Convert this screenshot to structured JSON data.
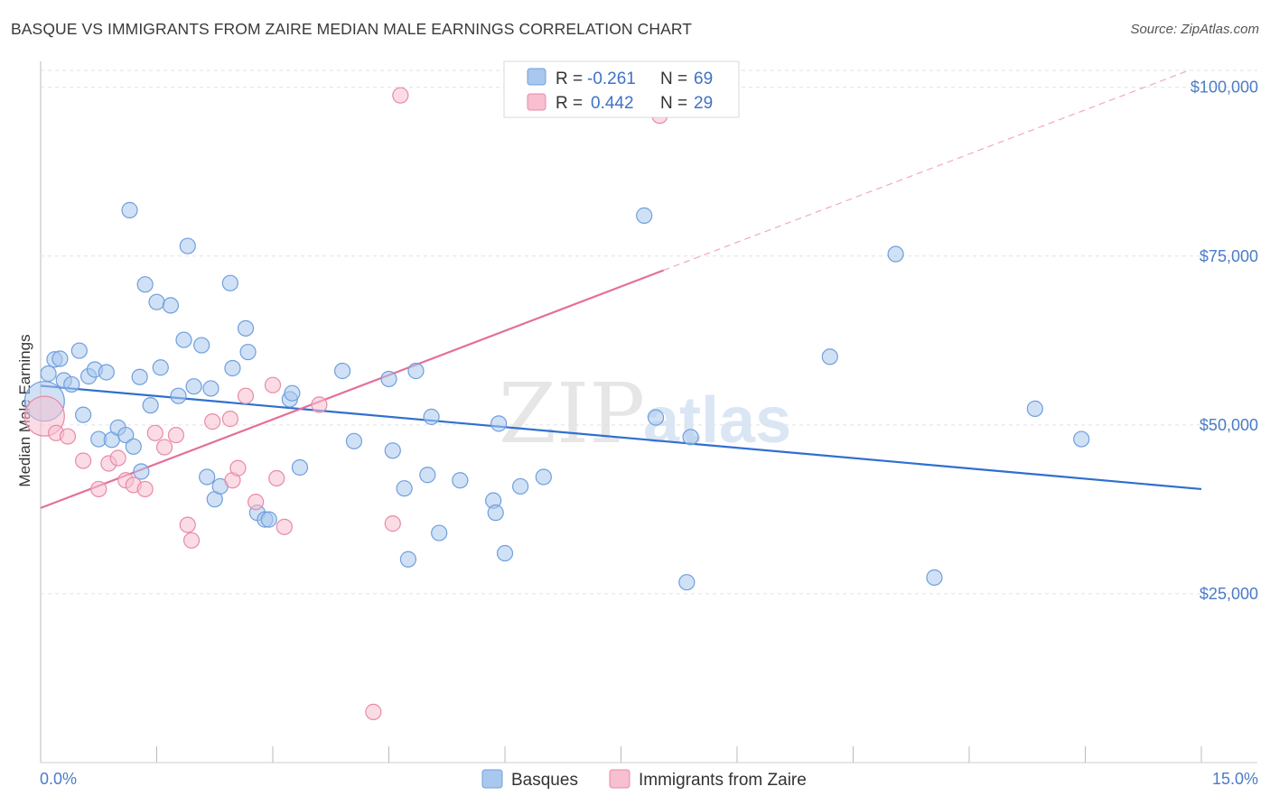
{
  "chart_data": {
    "type": "scatter",
    "title": "BASQUE VS IMMIGRANTS FROM ZAIRE MEDIAN MALE EARNINGS CORRELATION CHART",
    "source": "Source: ZipAtlas.com",
    "xlabel": "",
    "ylabel": "Median Male Earnings",
    "xlim": [
      0,
      15
    ],
    "ylim": [
      0,
      105000
    ],
    "x_tick_labels": {
      "left": "0.0%",
      "right": "15.0%"
    },
    "y_ticks": [
      {
        "value": 25000,
        "label": "$25,000"
      },
      {
        "value": 50000,
        "label": "$50,000"
      },
      {
        "value": 75000,
        "label": "$75,000"
      },
      {
        "value": 100000,
        "label": "$100,000"
      }
    ],
    "grid": true,
    "watermark": {
      "zip": "ZIP",
      "atlas": "atlas"
    },
    "legend": {
      "entries": [
        {
          "r_label": "R =",
          "r_value": "-0.261",
          "n_label": "N =",
          "n_value": "69",
          "color": "#a9c8ef",
          "stroke": "#6f9fdc"
        },
        {
          "r_label": "R =",
          "r_value": "0.442",
          "n_label": "N =",
          "n_value": "29",
          "color": "#f7bfd0",
          "stroke": "#e88aa8"
        }
      ]
    },
    "bottom_legend": [
      {
        "label": "Basques",
        "color": "#a9c8ef",
        "stroke": "#6f9fdc"
      },
      {
        "label": "Immigrants from Zaire",
        "color": "#f7bfd0",
        "stroke": "#e88aa8"
      }
    ],
    "series": [
      {
        "name": "Basques",
        "color": "#a9c8ef",
        "stroke": "#6f9fdc",
        "trend": {
          "x0": 0,
          "y0": 55800,
          "x1": 15,
          "y1": 40500,
          "color": "#2f6fcf",
          "dashed_from": null
        },
        "points": [
          {
            "x": 0.05,
            "y": 53500,
            "big": true
          },
          {
            "x": 0.1,
            "y": 57600
          },
          {
            "x": 0.18,
            "y": 59700
          },
          {
            "x": 0.25,
            "y": 59800
          },
          {
            "x": 0.3,
            "y": 56600
          },
          {
            "x": 0.4,
            "y": 56000
          },
          {
            "x": 0.5,
            "y": 61000
          },
          {
            "x": 0.55,
            "y": 51500
          },
          {
            "x": 0.62,
            "y": 57200
          },
          {
            "x": 0.7,
            "y": 58200
          },
          {
            "x": 0.75,
            "y": 47900
          },
          {
            "x": 0.85,
            "y": 57800
          },
          {
            "x": 0.92,
            "y": 47800
          },
          {
            "x": 1.0,
            "y": 49600
          },
          {
            "x": 1.1,
            "y": 48500
          },
          {
            "x": 1.15,
            "y": 81800
          },
          {
            "x": 1.2,
            "y": 46800
          },
          {
            "x": 1.28,
            "y": 57100
          },
          {
            "x": 1.3,
            "y": 43100
          },
          {
            "x": 1.35,
            "y": 70800
          },
          {
            "x": 1.42,
            "y": 52900
          },
          {
            "x": 1.5,
            "y": 68200
          },
          {
            "x": 1.55,
            "y": 58500
          },
          {
            "x": 1.68,
            "y": 67700
          },
          {
            "x": 1.78,
            "y": 54300
          },
          {
            "x": 1.85,
            "y": 62600
          },
          {
            "x": 1.9,
            "y": 76500
          },
          {
            "x": 1.98,
            "y": 55700
          },
          {
            "x": 2.08,
            "y": 61800
          },
          {
            "x": 2.15,
            "y": 42300
          },
          {
            "x": 2.2,
            "y": 55400
          },
          {
            "x": 2.25,
            "y": 39000
          },
          {
            "x": 2.32,
            "y": 40900
          },
          {
            "x": 2.45,
            "y": 71000
          },
          {
            "x": 2.48,
            "y": 58400
          },
          {
            "x": 2.65,
            "y": 64300
          },
          {
            "x": 2.68,
            "y": 60800
          },
          {
            "x": 2.8,
            "y": 37000
          },
          {
            "x": 2.9,
            "y": 36000
          },
          {
            "x": 2.95,
            "y": 36000
          },
          {
            "x": 3.22,
            "y": 53800
          },
          {
            "x": 3.25,
            "y": 54700
          },
          {
            "x": 3.35,
            "y": 43700
          },
          {
            "x": 3.9,
            "y": 58000
          },
          {
            "x": 4.05,
            "y": 47600
          },
          {
            "x": 4.5,
            "y": 56800
          },
          {
            "x": 4.55,
            "y": 46200
          },
          {
            "x": 4.7,
            "y": 40600
          },
          {
            "x": 4.75,
            "y": 30100
          },
          {
            "x": 4.85,
            "y": 58000
          },
          {
            "x": 5.0,
            "y": 42600
          },
          {
            "x": 5.05,
            "y": 51200
          },
          {
            "x": 5.15,
            "y": 34000
          },
          {
            "x": 5.42,
            "y": 41800
          },
          {
            "x": 5.85,
            "y": 38800
          },
          {
            "x": 5.88,
            "y": 37000
          },
          {
            "x": 5.92,
            "y": 50200
          },
          {
            "x": 6.0,
            "y": 31000
          },
          {
            "x": 6.2,
            "y": 40900
          },
          {
            "x": 6.5,
            "y": 42300
          },
          {
            "x": 7.8,
            "y": 81000
          },
          {
            "x": 7.95,
            "y": 51100
          },
          {
            "x": 8.35,
            "y": 26700
          },
          {
            "x": 8.4,
            "y": 48200
          },
          {
            "x": 10.2,
            "y": 60100
          },
          {
            "x": 11.05,
            "y": 75300
          },
          {
            "x": 11.55,
            "y": 27400
          },
          {
            "x": 12.85,
            "y": 52400
          },
          {
            "x": 13.45,
            "y": 47900
          }
        ]
      },
      {
        "name": "Immigrants from Zaire",
        "color": "#f7bfd0",
        "stroke": "#e88aa8",
        "trend": {
          "x0": 0,
          "y0": 37700,
          "x1": 8.05,
          "y1": 72900,
          "x2": 15,
          "y2": 103200,
          "color": "#e4709a"
        },
        "points": [
          {
            "x": 0.05,
            "y": 51300,
            "big": true
          },
          {
            "x": 0.2,
            "y": 48800
          },
          {
            "x": 0.35,
            "y": 48300
          },
          {
            "x": 0.55,
            "y": 44700
          },
          {
            "x": 0.75,
            "y": 40500
          },
          {
            "x": 0.88,
            "y": 44300
          },
          {
            "x": 1.0,
            "y": 45100
          },
          {
            "x": 1.1,
            "y": 41800
          },
          {
            "x": 1.2,
            "y": 41100
          },
          {
            "x": 1.35,
            "y": 40500
          },
          {
            "x": 1.48,
            "y": 48800
          },
          {
            "x": 1.6,
            "y": 46700
          },
          {
            "x": 1.75,
            "y": 48500
          },
          {
            "x": 1.9,
            "y": 35200
          },
          {
            "x": 1.95,
            "y": 32900
          },
          {
            "x": 2.22,
            "y": 50500
          },
          {
            "x": 2.45,
            "y": 50900
          },
          {
            "x": 2.48,
            "y": 41800
          },
          {
            "x": 2.55,
            "y": 43600
          },
          {
            "x": 2.65,
            "y": 54300
          },
          {
            "x": 2.78,
            "y": 38600
          },
          {
            "x": 3.0,
            "y": 55900
          },
          {
            "x": 3.05,
            "y": 42100
          },
          {
            "x": 3.15,
            "y": 34900
          },
          {
            "x": 3.6,
            "y": 53000
          },
          {
            "x": 4.3,
            "y": 7500
          },
          {
            "x": 4.55,
            "y": 35400
          },
          {
            "x": 4.65,
            "y": 98800
          },
          {
            "x": 8.0,
            "y": 95800
          }
        ]
      }
    ]
  }
}
